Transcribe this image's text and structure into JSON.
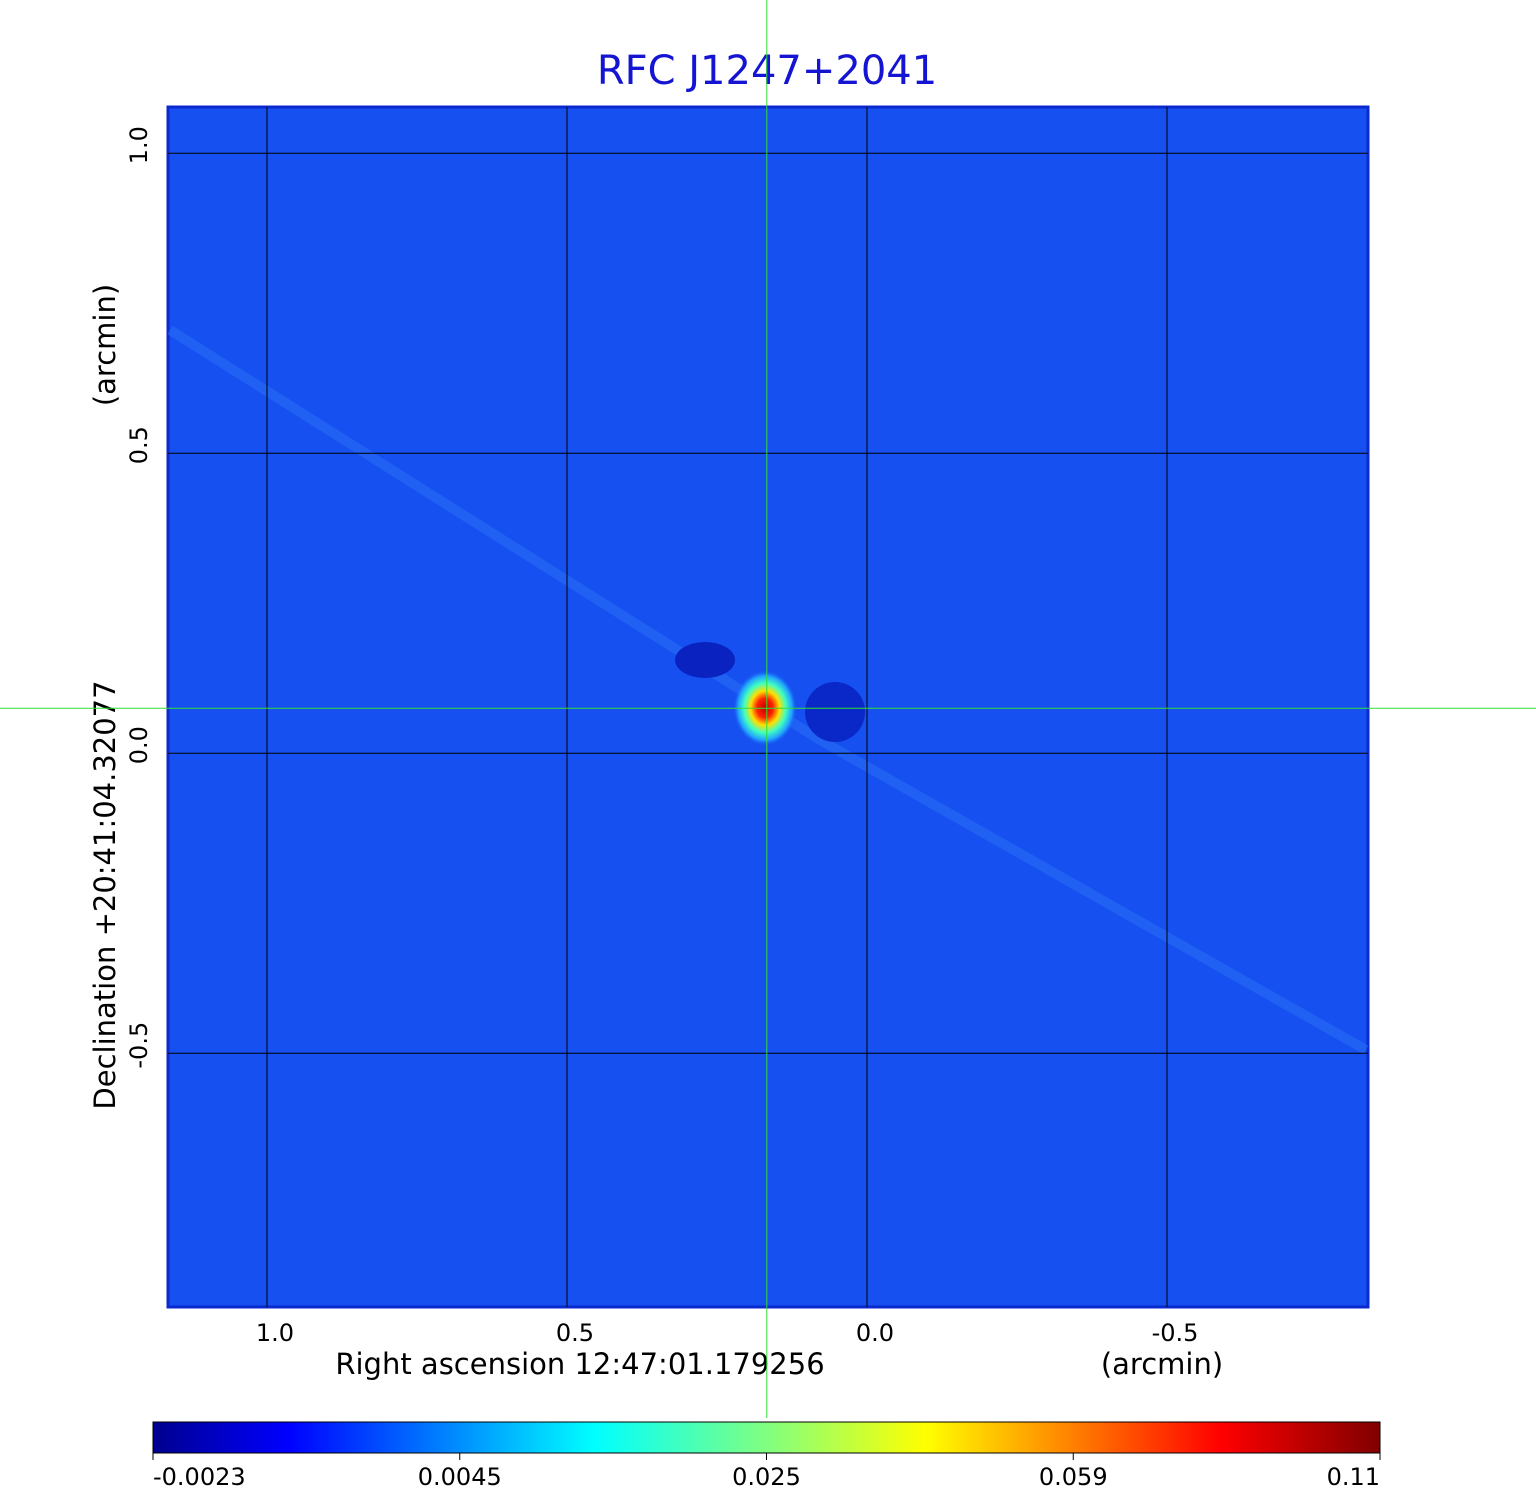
{
  "chart_data": {
    "type": "image",
    "title": "RFC J1247+2041",
    "x_label": "Right ascension  12:47:01.179256",
    "x_unit": "(arcmin)",
    "y_label": "Declination  +20:41:04.32077",
    "y_unit": "(arcmin)",
    "xlim": [
      1.165,
      -0.835
    ],
    "ylim": [
      -0.923,
      1.077
    ],
    "xticks": [
      {
        "value": 1,
        "label": "1.0"
      },
      0.5,
      {
        "value": 0,
        "label": "0.0"
      },
      -0.5
    ],
    "yticks": [
      {
        "value": 1,
        "label": "1.0"
      },
      0.5,
      {
        "value": 0,
        "label": "0.0"
      },
      -0.5
    ],
    "grid": true,
    "crosshair": {
      "x": 0.167,
      "y": 0.075,
      "color": "#33dd33"
    },
    "colorbar": {
      "ticks": [
        -0.0023,
        0.0045,
        0.025,
        0.059,
        0.11
      ]
    }
  }
}
